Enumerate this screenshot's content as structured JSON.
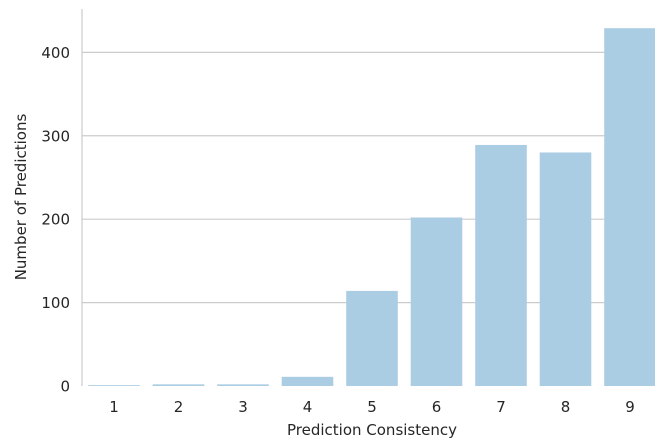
{
  "chart_data": {
    "type": "bar",
    "title": "",
    "xlabel": "Prediction Consistency",
    "ylabel": "Number of Predictions",
    "categories": [
      "1",
      "2",
      "3",
      "4",
      "5",
      "6",
      "7",
      "8",
      "9"
    ],
    "values": [
      1,
      2,
      2,
      11,
      114,
      202,
      289,
      280,
      429
    ],
    "ylim": [
      0,
      452
    ],
    "yticks": [
      "0",
      "100",
      "200",
      "300",
      "400"
    ],
    "grid": true,
    "bar_color": "#abcde3",
    "grid_color": "#cccccc"
  }
}
